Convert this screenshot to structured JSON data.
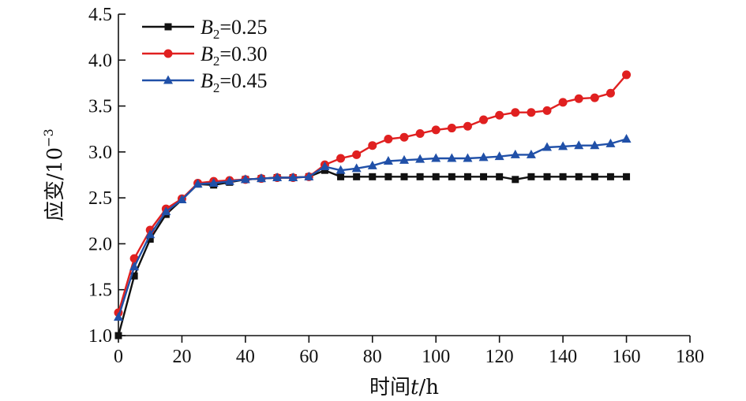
{
  "chart_data": {
    "type": "line",
    "xlabel": {
      "prefix": "时间",
      "var": "t",
      "unit": "/h"
    },
    "ylabel": {
      "prefix": "应变",
      "unit": "/10",
      "exp": "−3"
    },
    "xlim": [
      0,
      180
    ],
    "ylim": [
      1.0,
      4.5
    ],
    "xticks": [
      "0",
      "20",
      "40",
      "60",
      "80",
      "100",
      "120",
      "140",
      "160",
      "180"
    ],
    "yticks": [
      "1.0",
      "1.5",
      "2.0",
      "2.5",
      "3.0",
      "3.5",
      "4.0",
      "4.5"
    ],
    "grid": false,
    "legend_position": "top-left",
    "x": [
      0,
      5,
      10,
      15,
      20,
      25,
      30,
      35,
      40,
      45,
      50,
      55,
      60,
      65,
      70,
      75,
      80,
      85,
      90,
      95,
      100,
      105,
      110,
      115,
      120,
      125,
      130,
      135,
      140,
      145,
      150,
      155,
      160
    ],
    "series": [
      {
        "name": "B2=0.25",
        "label": {
          "sym": "B",
          "sub": "2",
          "value": "=0.25"
        },
        "color": "#111111",
        "marker": "square",
        "values": [
          1.0,
          1.65,
          2.05,
          2.32,
          2.48,
          2.65,
          2.64,
          2.67,
          2.7,
          2.71,
          2.72,
          2.72,
          2.73,
          2.8,
          2.73,
          2.73,
          2.73,
          2.73,
          2.73,
          2.73,
          2.73,
          2.73,
          2.73,
          2.73,
          2.73,
          2.7,
          2.73,
          2.73,
          2.73,
          2.73,
          2.73,
          2.73,
          2.73
        ]
      },
      {
        "name": "B2=0.30",
        "label": {
          "sym": "B",
          "sub": "2",
          "value": "=0.30"
        },
        "color": "#e02020",
        "marker": "circle",
        "values": [
          1.25,
          1.84,
          2.15,
          2.38,
          2.49,
          2.66,
          2.68,
          2.69,
          2.7,
          2.71,
          2.72,
          2.72,
          2.73,
          2.86,
          2.93,
          2.97,
          3.07,
          3.14,
          3.16,
          3.2,
          3.24,
          3.26,
          3.28,
          3.35,
          3.4,
          3.43,
          3.43,
          3.45,
          3.54,
          3.58,
          3.59,
          3.64,
          3.84
        ]
      },
      {
        "name": "B2=0.45",
        "label": {
          "sym": "B",
          "sub": "2",
          "value": "=0.45"
        },
        "color": "#2050a8",
        "marker": "triangle",
        "values": [
          1.2,
          1.75,
          2.1,
          2.35,
          2.48,
          2.65,
          2.66,
          2.68,
          2.7,
          2.71,
          2.72,
          2.72,
          2.73,
          2.84,
          2.8,
          2.82,
          2.85,
          2.9,
          2.91,
          2.92,
          2.93,
          2.93,
          2.93,
          2.94,
          2.95,
          2.97,
          2.97,
          3.05,
          3.06,
          3.07,
          3.07,
          3.09,
          3.14
        ]
      }
    ]
  }
}
